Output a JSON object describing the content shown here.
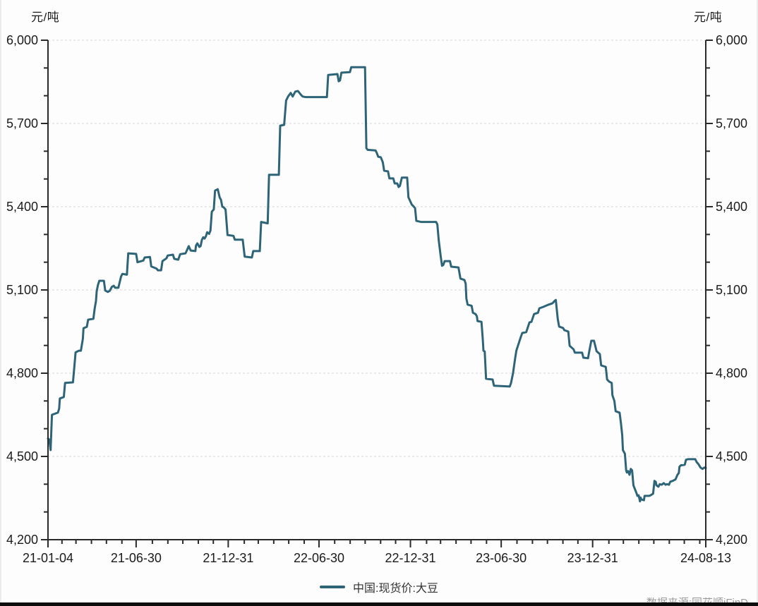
{
  "chart_data": {
    "type": "line",
    "unit_label_left": "元/吨",
    "unit_label_right": "元/吨",
    "legend": [
      "中国:现货价:大豆"
    ],
    "legend_position": "bottom-center",
    "grid": "horizontal-dashed-major",
    "source_note": "数据来源:同花顺iFinD",
    "y_axis": {
      "min": 4200,
      "max": 6000,
      "major_tick_interval": 300,
      "minor_tick_interval": 100,
      "tick_values": [
        6000,
        5700,
        5400,
        5100,
        4800,
        4500,
        4200
      ],
      "tick_labels": [
        "6,000",
        "5,700",
        "5,400",
        "5,100",
        "4,800",
        "4,500",
        "4,200"
      ],
      "mirrored_right": true
    },
    "x_axis": {
      "tick_labels": [
        "21-01-04",
        "21-06-30",
        "21-12-31",
        "22-06-30",
        "22-12-31",
        "23-06-30",
        "23-12-31",
        "24-08-13"
      ],
      "tick_positions": [
        0.0,
        0.134,
        0.274,
        0.412,
        0.551,
        0.689,
        0.828,
        1.0
      ],
      "minor_ticks": "monthly",
      "start_date": "2021-01-04",
      "end_date": "2024-08-13"
    },
    "series": [
      {
        "name": "中国:现货价:大豆",
        "color": "#2e6478",
        "points": [
          [
            0.0,
            4565
          ],
          [
            0.002,
            4560
          ],
          [
            0.004,
            4523
          ],
          [
            0.006,
            4650
          ],
          [
            0.015,
            4658
          ],
          [
            0.017,
            4672
          ],
          [
            0.018,
            4709
          ],
          [
            0.024,
            4714
          ],
          [
            0.026,
            4765
          ],
          [
            0.038,
            4767
          ],
          [
            0.042,
            4875
          ],
          [
            0.047,
            4881
          ],
          [
            0.05,
            4881
          ],
          [
            0.053,
            4924
          ],
          [
            0.054,
            4962
          ],
          [
            0.059,
            4967
          ],
          [
            0.061,
            4993
          ],
          [
            0.069,
            4996
          ],
          [
            0.071,
            5034
          ],
          [
            0.073,
            5060
          ],
          [
            0.074,
            5095
          ],
          [
            0.076,
            5118
          ],
          [
            0.078,
            5133
          ],
          [
            0.085,
            5133
          ],
          [
            0.087,
            5098
          ],
          [
            0.091,
            5093
          ],
          [
            0.094,
            5097
          ],
          [
            0.097,
            5111
          ],
          [
            0.1,
            5115
          ],
          [
            0.102,
            5108
          ],
          [
            0.107,
            5108
          ],
          [
            0.111,
            5148
          ],
          [
            0.113,
            5158
          ],
          [
            0.12,
            5155
          ],
          [
            0.122,
            5232
          ],
          [
            0.134,
            5230
          ],
          [
            0.136,
            5200
          ],
          [
            0.145,
            5206
          ],
          [
            0.147,
            5217
          ],
          [
            0.155,
            5219
          ],
          [
            0.157,
            5185
          ],
          [
            0.165,
            5177
          ],
          [
            0.167,
            5171
          ],
          [
            0.172,
            5171
          ],
          [
            0.174,
            5204
          ],
          [
            0.18,
            5214
          ],
          [
            0.182,
            5224
          ],
          [
            0.19,
            5227
          ],
          [
            0.192,
            5212
          ],
          [
            0.198,
            5209
          ],
          [
            0.201,
            5229
          ],
          [
            0.209,
            5232
          ],
          [
            0.211,
            5242
          ],
          [
            0.214,
            5258
          ],
          [
            0.217,
            5242
          ],
          [
            0.224,
            5240
          ],
          [
            0.225,
            5260
          ],
          [
            0.227,
            5268
          ],
          [
            0.23,
            5255
          ],
          [
            0.232,
            5258
          ],
          [
            0.234,
            5281
          ],
          [
            0.236,
            5290
          ],
          [
            0.238,
            5285
          ],
          [
            0.24,
            5293
          ],
          [
            0.242,
            5308
          ],
          [
            0.245,
            5302
          ],
          [
            0.247,
            5314
          ],
          [
            0.249,
            5382
          ],
          [
            0.252,
            5390
          ],
          [
            0.254,
            5458
          ],
          [
            0.258,
            5463
          ],
          [
            0.261,
            5433
          ],
          [
            0.263,
            5425
          ],
          [
            0.265,
            5400
          ],
          [
            0.267,
            5398
          ],
          [
            0.27,
            5390
          ],
          [
            0.273,
            5298
          ],
          [
            0.282,
            5295
          ],
          [
            0.284,
            5281
          ],
          [
            0.296,
            5281
          ],
          [
            0.299,
            5220
          ],
          [
            0.31,
            5217
          ],
          [
            0.312,
            5240
          ],
          [
            0.322,
            5240
          ],
          [
            0.324,
            5345
          ],
          [
            0.334,
            5340
          ],
          [
            0.336,
            5515
          ],
          [
            0.351,
            5515
          ],
          [
            0.353,
            5692
          ],
          [
            0.359,
            5695
          ],
          [
            0.362,
            5783
          ],
          [
            0.365,
            5797
          ],
          [
            0.369,
            5810
          ],
          [
            0.372,
            5797
          ],
          [
            0.376,
            5815
          ],
          [
            0.38,
            5817
          ],
          [
            0.384,
            5805
          ],
          [
            0.387,
            5797
          ],
          [
            0.392,
            5795
          ],
          [
            0.424,
            5795
          ],
          [
            0.426,
            5875
          ],
          [
            0.44,
            5878
          ],
          [
            0.442,
            5852
          ],
          [
            0.444,
            5855
          ],
          [
            0.446,
            5883
          ],
          [
            0.459,
            5885
          ],
          [
            0.461,
            5903
          ],
          [
            0.482,
            5903
          ],
          [
            0.484,
            5611
          ],
          [
            0.486,
            5605
          ],
          [
            0.498,
            5603
          ],
          [
            0.5,
            5593
          ],
          [
            0.502,
            5580
          ],
          [
            0.506,
            5578
          ],
          [
            0.509,
            5560
          ],
          [
            0.511,
            5530
          ],
          [
            0.517,
            5527
          ],
          [
            0.519,
            5502
          ],
          [
            0.525,
            5502
          ],
          [
            0.527,
            5484
          ],
          [
            0.531,
            5484
          ],
          [
            0.533,
            5471
          ],
          [
            0.535,
            5475
          ],
          [
            0.538,
            5505
          ],
          [
            0.546,
            5505
          ],
          [
            0.548,
            5434
          ],
          [
            0.553,
            5408
          ],
          [
            0.555,
            5403
          ],
          [
            0.558,
            5395
          ],
          [
            0.56,
            5349
          ],
          [
            0.567,
            5345
          ],
          [
            0.59,
            5345
          ],
          [
            0.592,
            5336
          ],
          [
            0.594,
            5280
          ],
          [
            0.597,
            5222
          ],
          [
            0.599,
            5187
          ],
          [
            0.601,
            5190
          ],
          [
            0.603,
            5204
          ],
          [
            0.611,
            5204
          ],
          [
            0.613,
            5184
          ],
          [
            0.624,
            5181
          ],
          [
            0.627,
            5141
          ],
          [
            0.633,
            5136
          ],
          [
            0.635,
            5123
          ],
          [
            0.636,
            5069
          ],
          [
            0.638,
            5047
          ],
          [
            0.644,
            5043
          ],
          [
            0.646,
            5018
          ],
          [
            0.65,
            5013
          ],
          [
            0.652,
            5005
          ],
          [
            0.653,
            4988
          ],
          [
            0.659,
            4985
          ],
          [
            0.661,
            4920
          ],
          [
            0.662,
            4881
          ],
          [
            0.664,
            4878
          ],
          [
            0.666,
            4780
          ],
          [
            0.676,
            4777
          ],
          [
            0.678,
            4755
          ],
          [
            0.702,
            4752
          ],
          [
            0.704,
            4765
          ],
          [
            0.707,
            4800
          ],
          [
            0.71,
            4850
          ],
          [
            0.712,
            4881
          ],
          [
            0.716,
            4910
          ],
          [
            0.719,
            4932
          ],
          [
            0.721,
            4945
          ],
          [
            0.727,
            4948
          ],
          [
            0.732,
            4983
          ],
          [
            0.735,
            4985
          ],
          [
            0.739,
            5013
          ],
          [
            0.745,
            5018
          ],
          [
            0.747,
            5034
          ],
          [
            0.753,
            5039
          ],
          [
            0.761,
            5047
          ],
          [
            0.767,
            5052
          ],
          [
            0.77,
            5060
          ],
          [
            0.772,
            5064
          ],
          [
            0.775,
            4995
          ],
          [
            0.777,
            4968
          ],
          [
            0.783,
            4963
          ],
          [
            0.785,
            4955
          ],
          [
            0.791,
            4950
          ],
          [
            0.793,
            4899
          ],
          [
            0.799,
            4886
          ],
          [
            0.801,
            4874
          ],
          [
            0.812,
            4874
          ],
          [
            0.814,
            4856
          ],
          [
            0.821,
            4854
          ],
          [
            0.823,
            4880
          ],
          [
            0.826,
            4917
          ],
          [
            0.83,
            4917
          ],
          [
            0.834,
            4879
          ],
          [
            0.839,
            4869
          ],
          [
            0.841,
            4828
          ],
          [
            0.848,
            4823
          ],
          [
            0.85,
            4777
          ],
          [
            0.853,
            4770
          ],
          [
            0.857,
            4765
          ],
          [
            0.858,
            4721
          ],
          [
            0.861,
            4700
          ],
          [
            0.863,
            4663
          ],
          [
            0.869,
            4658
          ],
          [
            0.871,
            4620
          ],
          [
            0.873,
            4577
          ],
          [
            0.874,
            4523
          ],
          [
            0.877,
            4510
          ],
          [
            0.879,
            4450
          ],
          [
            0.88,
            4442
          ],
          [
            0.882,
            4447
          ],
          [
            0.884,
            4434
          ],
          [
            0.886,
            4455
          ],
          [
            0.888,
            4450
          ],
          [
            0.89,
            4396
          ],
          [
            0.895,
            4366
          ],
          [
            0.896,
            4358
          ],
          [
            0.898,
            4360
          ],
          [
            0.9,
            4338
          ],
          [
            0.901,
            4352
          ],
          [
            0.902,
            4345
          ],
          [
            0.906,
            4342
          ],
          [
            0.907,
            4358
          ],
          [
            0.914,
            4358
          ],
          [
            0.916,
            4360
          ],
          [
            0.92,
            4366
          ],
          [
            0.922,
            4412
          ],
          [
            0.924,
            4408
          ],
          [
            0.925,
            4396
          ],
          [
            0.928,
            4391
          ],
          [
            0.93,
            4400
          ],
          [
            0.933,
            4398
          ],
          [
            0.936,
            4404
          ],
          [
            0.939,
            4398
          ],
          [
            0.941,
            4400
          ],
          [
            0.944,
            4398
          ],
          [
            0.946,
            4409
          ],
          [
            0.95,
            4412
          ],
          [
            0.954,
            4417
          ],
          [
            0.957,
            4434
          ],
          [
            0.959,
            4440
          ],
          [
            0.96,
            4463
          ],
          [
            0.962,
            4468
          ],
          [
            0.968,
            4470
          ],
          [
            0.97,
            4488
          ],
          [
            0.973,
            4490
          ],
          [
            0.984,
            4490
          ],
          [
            0.986,
            4480
          ],
          [
            0.989,
            4472
          ],
          [
            0.992,
            4460
          ],
          [
            0.995,
            4455
          ],
          [
            0.998,
            4460
          ],
          [
            1.0,
            4458
          ]
        ]
      }
    ],
    "colors": {
      "line": "#2e6478",
      "axis": "#2a2a2a",
      "gridline": "#d8d8d8",
      "tick_text": "#1b1b1b",
      "background": "#fdfdfd"
    }
  }
}
